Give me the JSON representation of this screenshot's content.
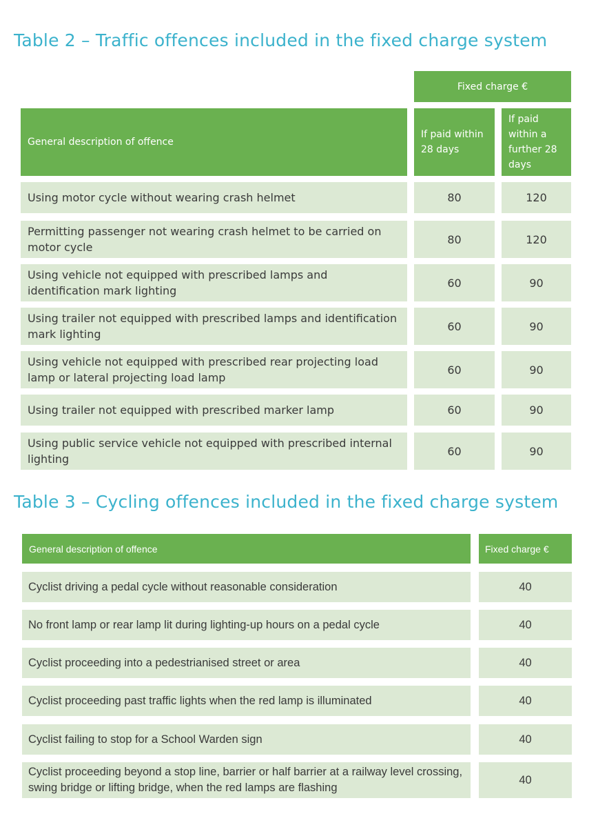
{
  "table2": {
    "title": "Table 2 – Traffic offences included in the fixed charge system",
    "group_header": "Fixed charge €",
    "col_description": "General description of offence",
    "col_within_28": "If paid within 28 days",
    "col_further_28": "If paid within a further 28 days",
    "rows": [
      {
        "description": "Using motor cycle without wearing crash helmet",
        "within_28": "80",
        "further_28": "120"
      },
      {
        "description": "Permitting passenger not wearing crash helmet to be carried on motor cycle",
        "within_28": "80",
        "further_28": "120"
      },
      {
        "description": "Using vehicle not equipped with prescribed lamps and identification mark lighting",
        "within_28": "60",
        "further_28": "90"
      },
      {
        "description": "Using trailer not equipped with prescribed lamps and identification mark lighting",
        "within_28": "60",
        "further_28": "90"
      },
      {
        "description": "Using vehicle not equipped with prescribed rear projecting load lamp or lateral projecting load lamp",
        "within_28": "60",
        "further_28": "90"
      },
      {
        "description": "Using trailer not equipped with prescribed marker lamp",
        "within_28": "60",
        "further_28": "90"
      },
      {
        "description": "Using public service vehicle not equipped with prescribed internal lighting",
        "within_28": "60",
        "further_28": "90"
      }
    ]
  },
  "table3": {
    "title": "Table 3 – Cycling offences included in the fixed charge system",
    "col_description": "General description of offence",
    "col_charge": "Fixed charge €",
    "rows": [
      {
        "description": "Cyclist driving a pedal cycle without reasonable consideration",
        "charge": "40"
      },
      {
        "description": "No front lamp or rear lamp lit during lighting-up hours on a pedal cycle",
        "charge": "40"
      },
      {
        "description": "Cyclist proceeding into a pedestrianised street or area",
        "charge": "40"
      },
      {
        "description": "Cyclist proceeding past traffic lights when the red lamp is illuminated",
        "charge": "40"
      },
      {
        "description": "Cyclist failing to stop for a School Warden sign",
        "charge": "40"
      },
      {
        "description": "Cyclist proceeding beyond a stop line, barrier or half barrier at a railway level crossing, swing bridge or lifting bridge, when the red lamps are flashing",
        "charge": "40"
      }
    ]
  }
}
